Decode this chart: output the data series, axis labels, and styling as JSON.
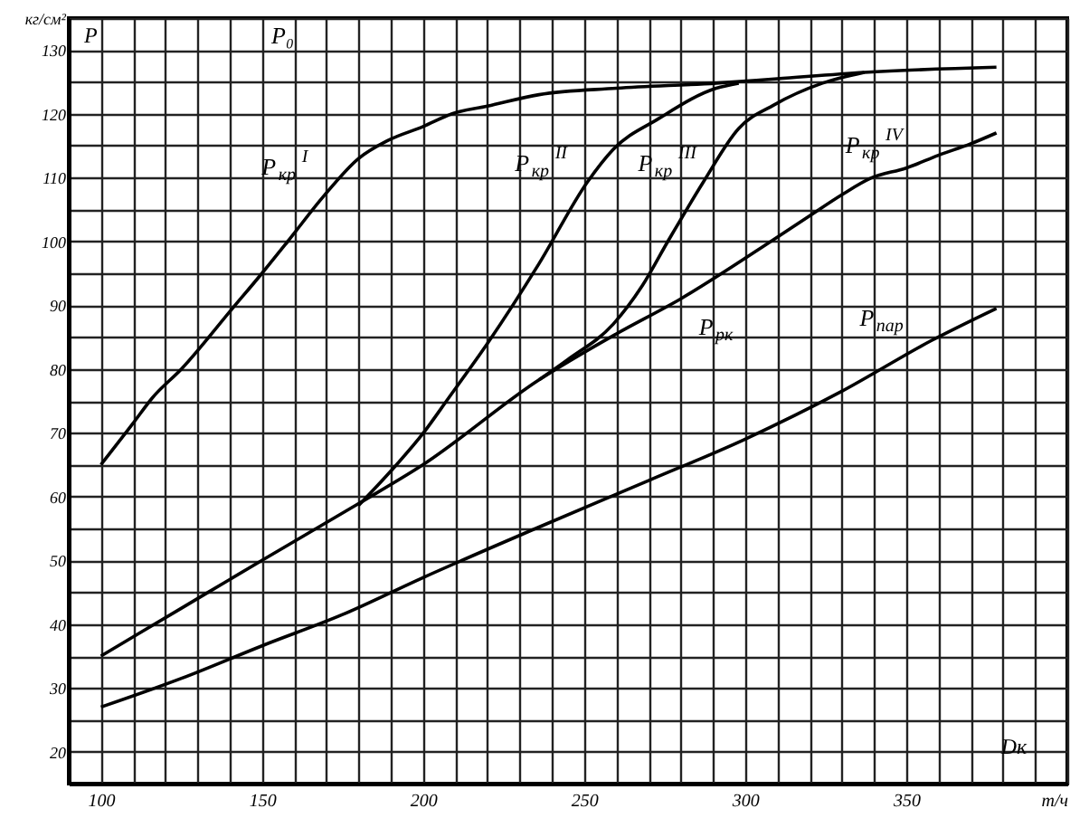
{
  "chart_data": {
    "type": "line",
    "xlabel": "Dк",
    "ylabel": "P",
    "xlim": [
      90,
      400
    ],
    "ylim": [
      15,
      135
    ],
    "xticks": [
      {
        "value": 90,
        "label": null
      },
      100,
      {
        "value": 110,
        "label": null
      },
      {
        "value": 120,
        "label": null
      },
      {
        "value": 130,
        "label": null
      },
      {
        "value": 140,
        "label": null
      },
      150,
      {
        "value": 160,
        "label": null
      },
      {
        "value": 170,
        "label": null
      },
      {
        "value": 180,
        "label": null
      },
      {
        "value": 190,
        "label": null
      },
      200,
      {
        "value": 210,
        "label": null
      },
      {
        "value": 220,
        "label": null
      },
      {
        "value": 230,
        "label": null
      },
      {
        "value": 240,
        "label": null
      },
      250,
      {
        "value": 260,
        "label": null
      },
      {
        "value": 270,
        "label": null
      },
      {
        "value": 280,
        "label": null
      },
      {
        "value": 290,
        "label": null
      },
      300,
      {
        "value": 310,
        "label": null
      },
      {
        "value": 320,
        "label": null
      },
      {
        "value": 330,
        "label": null
      },
      {
        "value": 340,
        "label": null
      },
      350,
      {
        "value": 360,
        "label": null
      },
      {
        "value": 370,
        "label": null
      },
      {
        "value": 380,
        "label": null
      },
      {
        "value": 390,
        "label": null
      },
      {
        "value": 400,
        "label": "т/ч"
      }
    ],
    "yticks": [
      {
        "value": 15,
        "label": null
      },
      20,
      {
        "value": 25,
        "label": null
      },
      30,
      {
        "value": 35,
        "label": null
      },
      40,
      {
        "value": 45,
        "label": null
      },
      50,
      {
        "value": 55,
        "label": null
      },
      60,
      {
        "value": 65,
        "label": null
      },
      70,
      {
        "value": 75,
        "label": null
      },
      80,
      {
        "value": 85,
        "label": null
      },
      90,
      {
        "value": 95,
        "label": null
      },
      100,
      {
        "value": 105,
        "label": null
      },
      110,
      {
        "value": 115,
        "label": null
      },
      120,
      {
        "value": 125,
        "label": null
      },
      130,
      {
        "value": 135,
        "label": "кг/см²"
      }
    ],
    "grid": true,
    "annotations": [
      "P₀"
    ],
    "series": [
      {
        "name": "P$_{кр}$$^{I}$",
        "color": "#000000",
        "x": [
          100,
          110,
          116,
          125,
          141,
          150,
          158,
          169,
          180,
          189,
          200,
          209,
          220,
          236,
          260,
          291,
          310,
          337,
          378
        ],
        "values": [
          65,
          71.5,
          75.5,
          80,
          89.6,
          95,
          100,
          107,
          113,
          115.8,
          118,
          120,
          121.2,
          123,
          124,
          124.8,
          125.5,
          126.5,
          127.3
        ]
      },
      {
        "name": "P$_{кр}$$^{II}$",
        "color": "#000000",
        "x": [
          180,
          190,
          200,
          208,
          220,
          236,
          251,
          259,
          273,
          291,
          298
        ],
        "values": [
          58.6,
          64,
          69.9,
          75.5,
          84,
          96.5,
          109.3,
          114.4,
          119.2,
          124,
          124.8
        ]
      },
      {
        "name": "P$_{кр}$$^{III}$",
        "color": "#000000",
        "x": [
          236,
          245,
          259,
          268,
          276,
          287,
          298,
          309,
          324,
          337
        ],
        "values": [
          78.3,
          81.5,
          87,
          93,
          100,
          109.3,
          117.7,
          121.4,
          124.8,
          126.5
        ]
      },
      {
        "name": "P$_{рк}$",
        "color": "#000000",
        "x": [
          100,
          125,
          150,
          180,
          200,
          236,
          260,
          280,
          308,
          323
        ],
        "values": [
          35,
          42.5,
          50,
          58.9,
          65,
          78.3,
          85.5,
          91,
          100,
          105
        ]
      },
      {
        "name": "P$_{кр}$$^{IV}$",
        "color": "#000000",
        "x": [
          323,
          330,
          339,
          350,
          360,
          370,
          378
        ],
        "values": [
          105,
          107.3,
          109.9,
          111.5,
          113.5,
          115.3,
          117
        ]
      },
      {
        "name": "P$_{пар}$",
        "color": "#000000",
        "x": [
          100,
          125,
          150,
          175,
          200,
          235,
          270,
          300,
          330,
          358,
          378
        ],
        "values": [
          27,
          31.5,
          36.6,
          41.5,
          47.3,
          55,
          62.5,
          69,
          76.5,
          84.5,
          89.5
        ]
      }
    ]
  }
}
